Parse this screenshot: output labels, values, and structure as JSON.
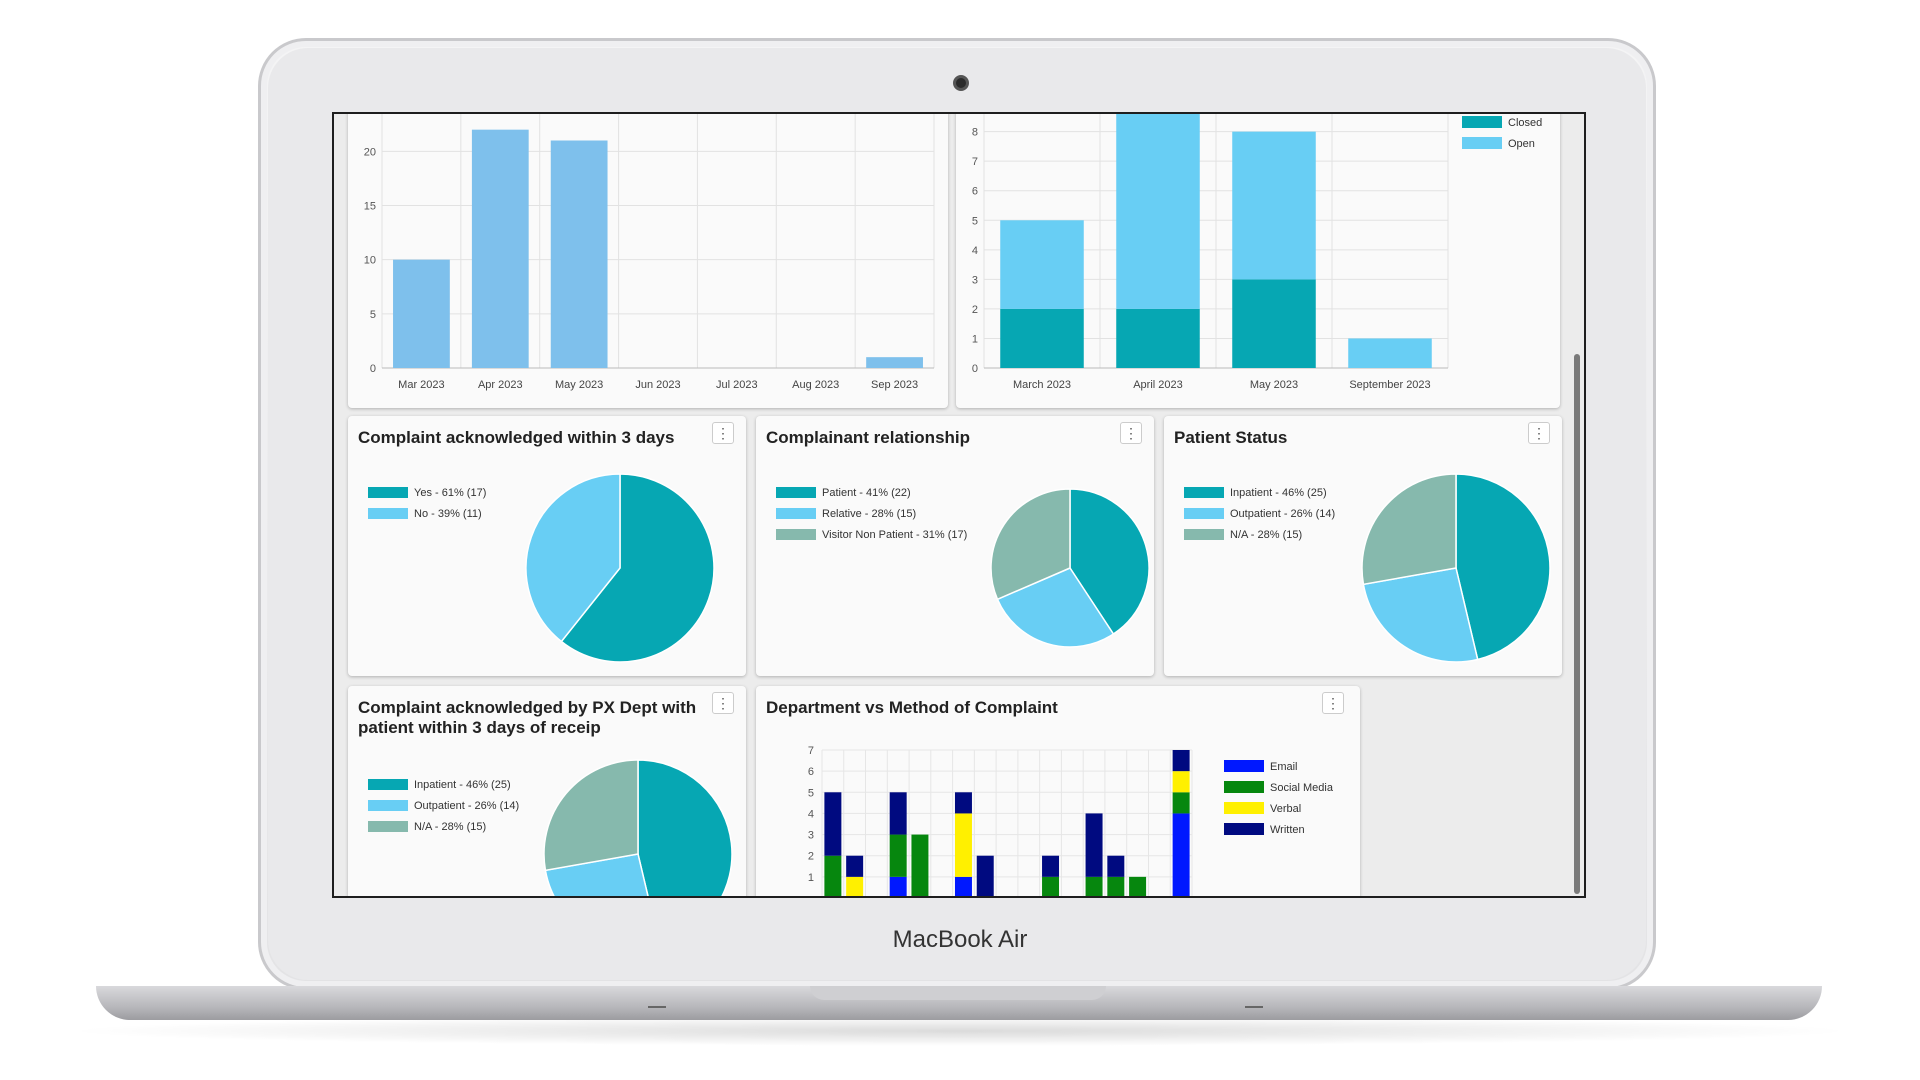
{
  "device": {
    "label": "MacBook Air"
  },
  "colors": {
    "teal": "#06a7b3",
    "lightblue": "#68cef4",
    "sage": "#86b9ad",
    "barblue": "#7ec0ec",
    "email": "#0018ff",
    "social_media": "#06870e",
    "verbal": "#fff000",
    "written": "#000a80"
  },
  "cards": {
    "monthly": {
      "chart_data": {
        "type": "bar",
        "categories": [
          "Mar 2023",
          "Apr 2023",
          "May 2023",
          "Jun 2023",
          "Jul 2023",
          "Aug 2023",
          "Sep 2023"
        ],
        "values": [
          10,
          22,
          21,
          0,
          0,
          0,
          1
        ],
        "yticks": [
          0,
          5,
          10,
          15,
          20
        ],
        "ylim": [
          0,
          24
        ],
        "grid": true
      }
    },
    "status": {
      "chart_data": {
        "type": "bar",
        "stacked": true,
        "categories": [
          "March 2023",
          "April 2023",
          "May 2023",
          "September 2023"
        ],
        "series": [
          {
            "name": "Closed",
            "values": [
              2,
              2,
              3,
              0
            ]
          },
          {
            "name": "Open",
            "values": [
              3,
              7,
              5,
              1
            ]
          }
        ],
        "yticks": [
          0,
          1,
          2,
          3,
          4,
          5,
          6,
          7,
          8
        ],
        "ylim": [
          0,
          8.8
        ],
        "legend": "top-right",
        "grid": true
      }
    },
    "ack3": {
      "title": "Complaint acknowledged within 3 days",
      "chart_data": {
        "type": "pie",
        "labels": [
          "Yes - 61% (17)",
          "No - 39% (11)"
        ],
        "values": [
          17,
          11
        ]
      }
    },
    "relationship": {
      "title": "Complainant relationship",
      "chart_data": {
        "type": "pie",
        "labels": [
          "Patient - 41% (22)",
          "Relative - 28% (15)",
          "Visitor Non Patient - 31% (17)"
        ],
        "values": [
          22,
          15,
          17
        ]
      }
    },
    "patient_status": {
      "title": "Patient Status",
      "chart_data": {
        "type": "pie",
        "labels": [
          "Inpatient - 46% (25)",
          "Outpatient - 26% (14)",
          "N/A - 28% (15)"
        ],
        "values": [
          25,
          14,
          15
        ]
      }
    },
    "px_dept": {
      "title_line1": "Complaint acknowledged by PX Dept with",
      "title_line2": "patient within 3 days of receip",
      "chart_data": {
        "type": "pie",
        "labels": [
          "Inpatient - 46% (25)",
          "Outpatient - 26% (14)",
          "N/A - 28% (15)"
        ],
        "values": [
          25,
          14,
          15
        ]
      }
    },
    "dept_method": {
      "title": "Department vs Method of Complaint",
      "chart_data": {
        "type": "bar",
        "stacked": true,
        "series": [
          {
            "name": "Email",
            "values": [
              0,
              0,
              0,
              1,
              0,
              0,
              1,
              0,
              0,
              0,
              0,
              0,
              0,
              0,
              0,
              0,
              4
            ]
          },
          {
            "name": "Social Media",
            "values": [
              2,
              0,
              0,
              2,
              3,
              0,
              0,
              0,
              0,
              0,
              1,
              0,
              1,
              1,
              1,
              0,
              1
            ]
          },
          {
            "name": "Verbal",
            "values": [
              0,
              1,
              0,
              0,
              0,
              0,
              3,
              0,
              0,
              0,
              0,
              0,
              0,
              0,
              0,
              0,
              1
            ]
          },
          {
            "name": "Written",
            "values": [
              3,
              1,
              0,
              2,
              0,
              0,
              1,
              2,
              0,
              0,
              1,
              0,
              3,
              1,
              0,
              0,
              1
            ]
          }
        ],
        "yticks": [
          1,
          2,
          3,
          4,
          5,
          6,
          7
        ],
        "ylim": [
          0,
          7
        ],
        "legend": "right",
        "grid": true
      }
    }
  }
}
